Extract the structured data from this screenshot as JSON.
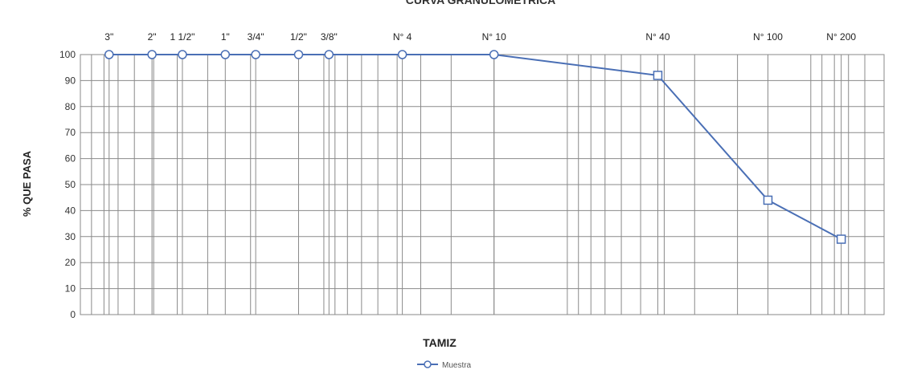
{
  "chart_data": {
    "type": "line",
    "title": "CURVA GRANULOMETRICA",
    "xlabel": "TAMIZ",
    "ylabel": "% QUE PASA",
    "x_scale": "log",
    "x_reversed": true,
    "ylim": [
      0,
      100
    ],
    "yticks": [
      0,
      10,
      20,
      30,
      40,
      50,
      60,
      70,
      80,
      90,
      100
    ],
    "grid": true,
    "legend_position": "bottom-center",
    "sieves": [
      {
        "label": "3\"",
        "size_mm": 76.2
      },
      {
        "label": "2\"",
        "size_mm": 50.8
      },
      {
        "label": "1 1/2\"",
        "size_mm": 38.1
      },
      {
        "label": "1\"",
        "size_mm": 25.4
      },
      {
        "label": "3/4\"",
        "size_mm": 19.05
      },
      {
        "label": "1/2\"",
        "size_mm": 12.7
      },
      {
        "label": "3/8\"",
        "size_mm": 9.525
      },
      {
        "label": "N° 4",
        "size_mm": 4.76
      },
      {
        "label": "N° 10",
        "size_mm": 2.0
      },
      {
        "label": "N° 40",
        "size_mm": 0.425
      },
      {
        "label": "N° 100",
        "size_mm": 0.15
      },
      {
        "label": "N° 200",
        "size_mm": 0.075
      }
    ],
    "series": [
      {
        "name": "Muestra",
        "color": "#4a6fb5",
        "x": [
          76.2,
          50.8,
          38.1,
          25.4,
          19.05,
          12.7,
          9.525,
          4.76,
          2.0,
          0.425,
          0.15,
          0.075
        ],
        "y": [
          100,
          100,
          100,
          100,
          100,
          100,
          100,
          100,
          100,
          92,
          44,
          29
        ]
      }
    ]
  }
}
